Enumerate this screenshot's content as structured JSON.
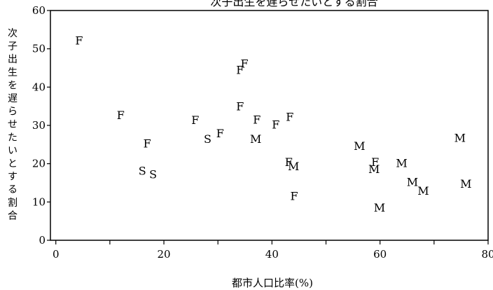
{
  "chart_data": {
    "type": "scatter",
    "title": "次子出生を遅らせたいとする割合",
    "xlabel": "都市人口比率(%)",
    "ylabel": "次子出生を遅らせたいとする割合",
    "xlim": [
      -1,
      80
    ],
    "ylim": [
      0,
      60
    ],
    "x_ticks": [
      0,
      20,
      40,
      60,
      80
    ],
    "y_ticks": [
      0,
      10,
      20,
      30,
      40,
      50,
      60
    ],
    "grid": false,
    "points": [
      {
        "x": 4.3,
        "y": 52.2,
        "label": "F"
      },
      {
        "x": 12.0,
        "y": 32.7,
        "label": "F"
      },
      {
        "x": 16.9,
        "y": 25.3,
        "label": "F"
      },
      {
        "x": 16.0,
        "y": 18.2,
        "label": "S"
      },
      {
        "x": 18.0,
        "y": 17.3,
        "label": "S"
      },
      {
        "x": 25.8,
        "y": 31.5,
        "label": "F"
      },
      {
        "x": 28.1,
        "y": 26.5,
        "label": "S"
      },
      {
        "x": 30.4,
        "y": 28.0,
        "label": "F"
      },
      {
        "x": 34.1,
        "y": 44.5,
        "label": "F"
      },
      {
        "x": 34.9,
        "y": 46.2,
        "label": "F"
      },
      {
        "x": 34.1,
        "y": 35.0,
        "label": "F"
      },
      {
        "x": 37.2,
        "y": 31.6,
        "label": "F"
      },
      {
        "x": 37.0,
        "y": 26.5,
        "label": "M"
      },
      {
        "x": 40.7,
        "y": 30.3,
        "label": "F"
      },
      {
        "x": 43.3,
        "y": 32.3,
        "label": "F"
      },
      {
        "x": 43.1,
        "y": 20.5,
        "label": "F"
      },
      {
        "x": 44.0,
        "y": 19.4,
        "label": "M"
      },
      {
        "x": 44.1,
        "y": 11.6,
        "label": "F"
      },
      {
        "x": 56.2,
        "y": 24.7,
        "label": "M"
      },
      {
        "x": 59.1,
        "y": 20.5,
        "label": "F"
      },
      {
        "x": 58.9,
        "y": 18.7,
        "label": "M"
      },
      {
        "x": 59.9,
        "y": 8.6,
        "label": "M"
      },
      {
        "x": 64.0,
        "y": 20.2,
        "label": "M"
      },
      {
        "x": 66.0,
        "y": 15.3,
        "label": "M"
      },
      {
        "x": 68.0,
        "y": 13.0,
        "label": "M"
      },
      {
        "x": 74.8,
        "y": 26.8,
        "label": "M"
      },
      {
        "x": 75.9,
        "y": 14.8,
        "label": "M"
      }
    ]
  }
}
